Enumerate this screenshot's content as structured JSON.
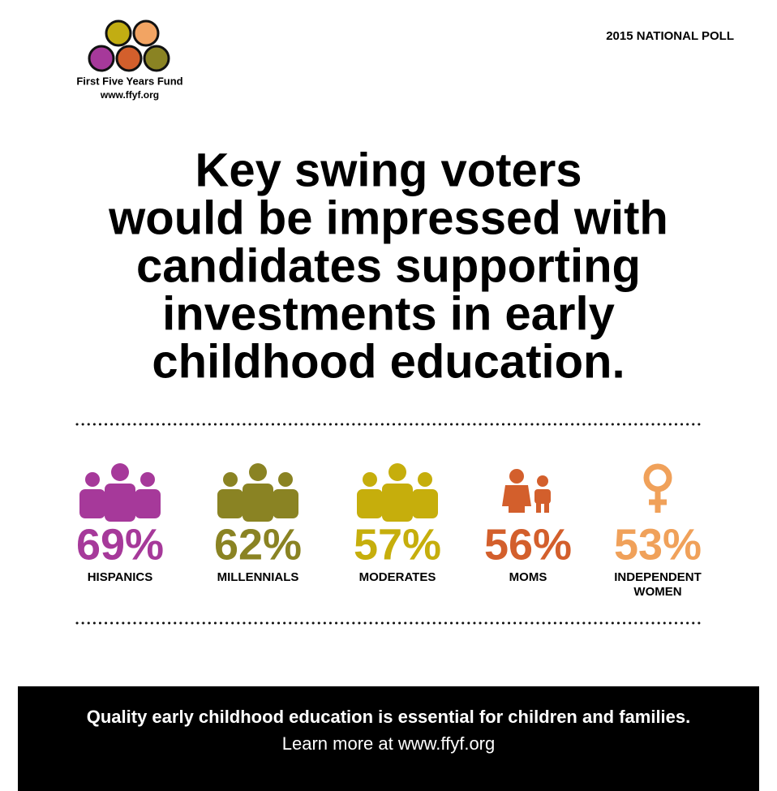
{
  "header": {
    "logo_name": "First Five Years Fund",
    "logo_url": "www.ffyf.org",
    "tag": "2015 NATIONAL POLL"
  },
  "headline": [
    "Key swing voters",
    "would be impressed with",
    "candidates supporting",
    "investments in early",
    "childhood education."
  ],
  "stats": [
    {
      "value": "69%",
      "label": [
        "HISPANICS"
      ]
    },
    {
      "value": "62%",
      "label": [
        "MILLENNIALS"
      ]
    },
    {
      "value": "57%",
      "label": [
        "MODERATES"
      ]
    },
    {
      "value": "56%",
      "label": [
        "MOMS"
      ]
    },
    {
      "value": "53%",
      "label": [
        "INDEPENDENT",
        "WOMEN"
      ]
    }
  ],
  "footer": {
    "line1": "Quality early childhood education is essential for children and families.",
    "line2": "Learn more at www.ffyf.org"
  }
}
